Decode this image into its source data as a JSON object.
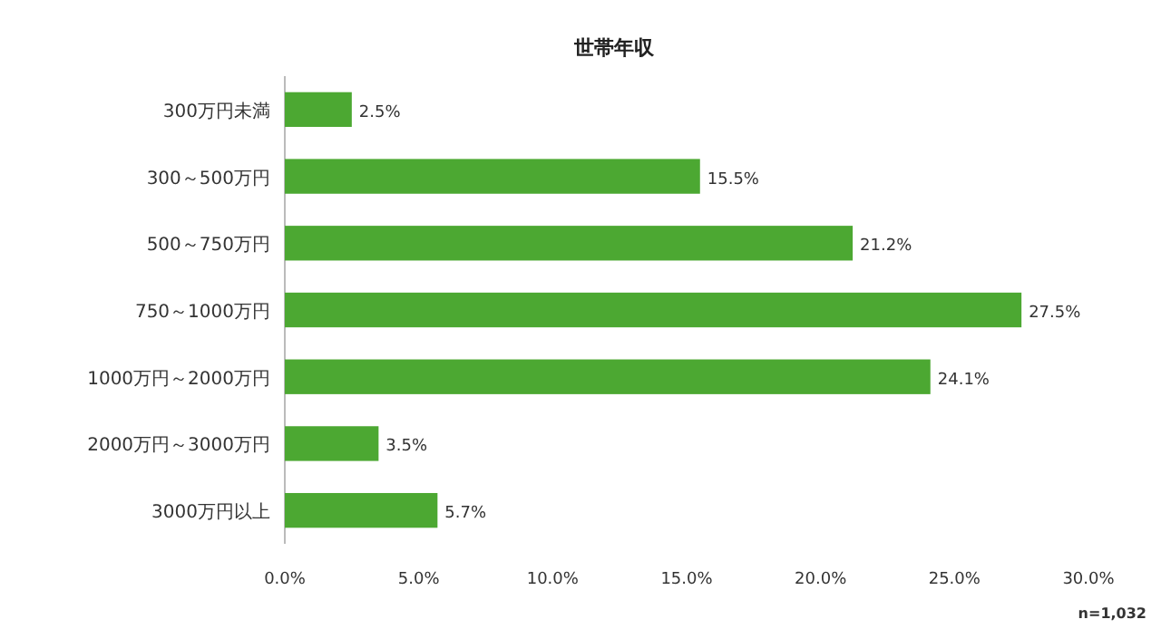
{
  "chart_data": {
    "type": "bar",
    "orientation": "horizontal",
    "title": "世帯年収",
    "categories": [
      "300万円未満",
      "300～500万円",
      "500～750万円",
      "750～1000万円",
      "1000万円～2000万円",
      "2000万円～3000万円",
      "3000万円以上"
    ],
    "values": [
      2.5,
      15.5,
      21.2,
      27.5,
      24.1,
      3.5,
      5.7
    ],
    "value_labels": [
      "2.5%",
      "15.5%",
      "21.2%",
      "27.5%",
      "24.1%",
      "3.5%",
      "5.7%"
    ],
    "color": "#4ca832",
    "xlim": [
      0,
      30
    ],
    "xticks": [
      {
        "value": 0,
        "label": "0.0%"
      },
      {
        "value": 5,
        "label": "5.0%"
      },
      {
        "value": 10,
        "label": "10.0%"
      },
      {
        "value": 15,
        "label": "15.0%"
      },
      {
        "value": 20,
        "label": "20.0%"
      },
      {
        "value": 25,
        "label": "25.0%"
      },
      {
        "value": 30,
        "label": "30.0%"
      }
    ],
    "grid": false,
    "annotations": [
      "n=1,032"
    ]
  }
}
